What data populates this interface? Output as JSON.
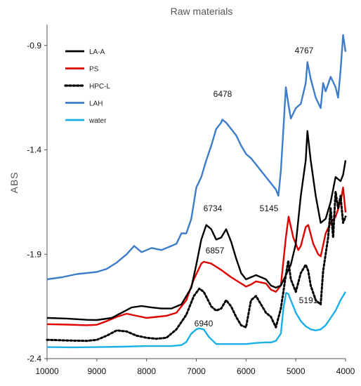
{
  "chart_data": {
    "type": "line",
    "title": "Raw materials",
    "xlabel": "",
    "ylabel": "ABS",
    "xlim": [
      10000,
      4000
    ],
    "ylim": [
      -2.4,
      -0.8
    ],
    "x_ticks": [
      10000,
      9000,
      8000,
      7000,
      6000,
      5000,
      4000
    ],
    "x_tick_labels": [
      "10000",
      "9000",
      "8000",
      "7000",
      "6000",
      "5000",
      "4000"
    ],
    "y_ticks": [
      -0.9,
      -1.4,
      -1.9,
      -2.4
    ],
    "y_tick_labels": [
      "-0.9",
      "-1.4",
      "-1.9",
      "-2.4"
    ],
    "grid": false,
    "legend_position": "top-left",
    "series": [
      {
        "name": "LA-A",
        "color": "#000000",
        "style": "solid",
        "points": [
          [
            10000,
            -2.205
          ],
          [
            9600,
            -2.208
          ],
          [
            9200,
            -2.214
          ],
          [
            9000,
            -2.215
          ],
          [
            8700,
            -2.205
          ],
          [
            8500,
            -2.18
          ],
          [
            8300,
            -2.155
          ],
          [
            8100,
            -2.148
          ],
          [
            7900,
            -2.155
          ],
          [
            7700,
            -2.16
          ],
          [
            7500,
            -2.16
          ],
          [
            7300,
            -2.14
          ],
          [
            7100,
            -2.06
          ],
          [
            7000,
            -1.95
          ],
          [
            6900,
            -1.83
          ],
          [
            6800,
            -1.76
          ],
          [
            6700,
            -1.78
          ],
          [
            6600,
            -1.83
          ],
          [
            6500,
            -1.82
          ],
          [
            6400,
            -1.78
          ],
          [
            6300,
            -1.84
          ],
          [
            6200,
            -1.92
          ],
          [
            6100,
            -1.99
          ],
          [
            6000,
            -2.02
          ],
          [
            5900,
            -2.01
          ],
          [
            5800,
            -2.0
          ],
          [
            5700,
            -2.01
          ],
          [
            5600,
            -2.02
          ],
          [
            5500,
            -2.05
          ],
          [
            5400,
            -2.06
          ],
          [
            5300,
            -2.05
          ],
          [
            5200,
            -2.0
          ],
          [
            5100,
            -1.95
          ],
          [
            5000,
            -1.85
          ],
          [
            4900,
            -1.62
          ],
          [
            4800,
            -1.45
          ],
          [
            4767,
            -1.31
          ],
          [
            4700,
            -1.45
          ],
          [
            4600,
            -1.62
          ],
          [
            4500,
            -1.75
          ],
          [
            4400,
            -1.73
          ],
          [
            4300,
            -1.65
          ],
          [
            4200,
            -1.53
          ],
          [
            4100,
            -1.55
          ],
          [
            4050,
            -1.52
          ],
          [
            4000,
            -1.45
          ]
        ]
      },
      {
        "name": "PS",
        "color": "#e00000",
        "style": "solid",
        "points": [
          [
            10000,
            -2.235
          ],
          [
            9600,
            -2.237
          ],
          [
            9200,
            -2.24
          ],
          [
            9000,
            -2.238
          ],
          [
            8800,
            -2.22
          ],
          [
            8600,
            -2.2
          ],
          [
            8400,
            -2.185
          ],
          [
            8200,
            -2.195
          ],
          [
            8000,
            -2.205
          ],
          [
            7800,
            -2.2
          ],
          [
            7600,
            -2.195
          ],
          [
            7400,
            -2.18
          ],
          [
            7200,
            -2.12
          ],
          [
            7050,
            -2.02
          ],
          [
            6900,
            -1.945
          ],
          [
            6850,
            -1.936
          ],
          [
            6700,
            -1.945
          ],
          [
            6500,
            -1.975
          ],
          [
            6300,
            -2.01
          ],
          [
            6100,
            -2.04
          ],
          [
            6000,
            -2.055
          ],
          [
            5900,
            -2.045
          ],
          [
            5800,
            -2.03
          ],
          [
            5700,
            -2.035
          ],
          [
            5600,
            -2.04
          ],
          [
            5500,
            -2.07
          ],
          [
            5400,
            -2.08
          ],
          [
            5300,
            -2.05
          ],
          [
            5200,
            -1.82
          ],
          [
            5145,
            -1.72
          ],
          [
            5050,
            -1.82
          ],
          [
            4950,
            -1.88
          ],
          [
            4900,
            -1.86
          ],
          [
            4800,
            -1.77
          ],
          [
            4750,
            -1.76
          ],
          [
            4650,
            -1.85
          ],
          [
            4550,
            -1.9
          ],
          [
            4500,
            -1.91
          ],
          [
            4400,
            -1.8
          ],
          [
            4300,
            -1.75
          ],
          [
            4200,
            -1.72
          ],
          [
            4100,
            -1.65
          ],
          [
            4050,
            -1.58
          ],
          [
            4000,
            -1.7
          ]
        ]
      },
      {
        "name": "HPC-L",
        "color": "#000000",
        "style": "dotted",
        "points": [
          [
            10000,
            -2.31
          ],
          [
            9600,
            -2.313
          ],
          [
            9200,
            -2.315
          ],
          [
            9000,
            -2.31
          ],
          [
            8800,
            -2.29
          ],
          [
            8600,
            -2.265
          ],
          [
            8400,
            -2.27
          ],
          [
            8200,
            -2.29
          ],
          [
            8000,
            -2.3
          ],
          [
            7800,
            -2.305
          ],
          [
            7600,
            -2.3
          ],
          [
            7400,
            -2.26
          ],
          [
            7200,
            -2.19
          ],
          [
            7050,
            -2.1
          ],
          [
            6940,
            -2.065
          ],
          [
            6850,
            -2.08
          ],
          [
            6700,
            -2.15
          ],
          [
            6600,
            -2.17
          ],
          [
            6500,
            -2.16
          ],
          [
            6400,
            -2.12
          ],
          [
            6300,
            -2.15
          ],
          [
            6200,
            -2.2
          ],
          [
            6100,
            -2.24
          ],
          [
            6000,
            -2.25
          ],
          [
            5900,
            -2.12
          ],
          [
            5800,
            -2.1
          ],
          [
            5700,
            -2.14
          ],
          [
            5600,
            -2.18
          ],
          [
            5500,
            -2.2
          ],
          [
            5400,
            -2.25
          ],
          [
            5300,
            -2.16
          ],
          [
            5200,
            -2.0
          ],
          [
            5150,
            -1.93
          ],
          [
            5100,
            -2.02
          ],
          [
            5000,
            -2.08
          ],
          [
            4900,
            -1.99
          ],
          [
            4800,
            -1.95
          ],
          [
            4750,
            -1.98
          ],
          [
            4700,
            -2.05
          ],
          [
            4600,
            -2.12
          ],
          [
            4500,
            -2.14
          ],
          [
            4450,
            -1.98
          ],
          [
            4350,
            -1.82
          ],
          [
            4300,
            -1.68
          ],
          [
            4250,
            -1.82
          ],
          [
            4200,
            -1.6
          ],
          [
            4150,
            -1.68
          ],
          [
            4100,
            -1.62
          ],
          [
            4050,
            -1.75
          ],
          [
            4000,
            -1.72
          ]
        ]
      },
      {
        "name": "LAH",
        "color": "#3d7cc9",
        "style": "solid",
        "points": [
          [
            10000,
            -2.02
          ],
          [
            9700,
            -2.01
          ],
          [
            9400,
            -1.995
          ],
          [
            9200,
            -1.99
          ],
          [
            9000,
            -1.985
          ],
          [
            8800,
            -1.97
          ],
          [
            8600,
            -1.94
          ],
          [
            8400,
            -1.9
          ],
          [
            8250,
            -1.86
          ],
          [
            8100,
            -1.89
          ],
          [
            7900,
            -1.87
          ],
          [
            7700,
            -1.88
          ],
          [
            7500,
            -1.86
          ],
          [
            7400,
            -1.85
          ],
          [
            7300,
            -1.8
          ],
          [
            7200,
            -1.8
          ],
          [
            7100,
            -1.73
          ],
          [
            7000,
            -1.58
          ],
          [
            6900,
            -1.53
          ],
          [
            6800,
            -1.45
          ],
          [
            6700,
            -1.38
          ],
          [
            6600,
            -1.3
          ],
          [
            6500,
            -1.27
          ],
          [
            6478,
            -1.255
          ],
          [
            6400,
            -1.27
          ],
          [
            6300,
            -1.3
          ],
          [
            6200,
            -1.33
          ],
          [
            6100,
            -1.38
          ],
          [
            6000,
            -1.42
          ],
          [
            5900,
            -1.44
          ],
          [
            5800,
            -1.47
          ],
          [
            5700,
            -1.5
          ],
          [
            5600,
            -1.53
          ],
          [
            5500,
            -1.56
          ],
          [
            5400,
            -1.59
          ],
          [
            5350,
            -1.62
          ],
          [
            5300,
            -1.5
          ],
          [
            5250,
            -1.3
          ],
          [
            5200,
            -1.1
          ],
          [
            5150,
            -1.18
          ],
          [
            5100,
            -1.25
          ],
          [
            5000,
            -1.2
          ],
          [
            4900,
            -1.18
          ],
          [
            4800,
            -1.08
          ],
          [
            4767,
            -0.98
          ],
          [
            4700,
            -1.06
          ],
          [
            4600,
            -1.15
          ],
          [
            4500,
            -1.2
          ],
          [
            4450,
            -1.08
          ],
          [
            4400,
            -1.12
          ],
          [
            4300,
            -1.05
          ],
          [
            4200,
            -1.1
          ],
          [
            4150,
            -1.15
          ],
          [
            4100,
            -1.02
          ],
          [
            4050,
            -0.85
          ],
          [
            4000,
            -0.93
          ]
        ]
      },
      {
        "name": "water",
        "color": "#1ab0e6",
        "style": "solid",
        "points": [
          [
            10000,
            -2.345
          ],
          [
            9500,
            -2.346
          ],
          [
            9000,
            -2.345
          ],
          [
            8500,
            -2.343
          ],
          [
            8000,
            -2.34
          ],
          [
            7500,
            -2.34
          ],
          [
            7300,
            -2.335
          ],
          [
            7200,
            -2.32
          ],
          [
            7100,
            -2.28
          ],
          [
            7000,
            -2.26
          ],
          [
            6940,
            -2.255
          ],
          [
            6850,
            -2.26
          ],
          [
            6750,
            -2.295
          ],
          [
            6600,
            -2.33
          ],
          [
            6400,
            -2.33
          ],
          [
            6200,
            -2.33
          ],
          [
            6000,
            -2.33
          ],
          [
            5800,
            -2.325
          ],
          [
            5600,
            -2.322
          ],
          [
            5500,
            -2.322
          ],
          [
            5400,
            -2.315
          ],
          [
            5300,
            -2.28
          ],
          [
            5250,
            -2.16
          ],
          [
            5200,
            -2.09
          ],
          [
            5191,
            -2.085
          ],
          [
            5150,
            -2.09
          ],
          [
            5100,
            -2.12
          ],
          [
            5000,
            -2.18
          ],
          [
            4900,
            -2.22
          ],
          [
            4800,
            -2.245
          ],
          [
            4700,
            -2.26
          ],
          [
            4600,
            -2.265
          ],
          [
            4500,
            -2.26
          ],
          [
            4400,
            -2.24
          ],
          [
            4300,
            -2.205
          ],
          [
            4200,
            -2.17
          ],
          [
            4100,
            -2.12
          ],
          [
            4000,
            -2.08
          ]
        ]
      }
    ],
    "annotations": [
      {
        "text": "4767"
      },
      {
        "text": "6478"
      },
      {
        "text": "6734"
      },
      {
        "text": "5145"
      },
      {
        "text": "6857"
      },
      {
        "text": "5191"
      },
      {
        "text": "6940"
      }
    ]
  }
}
